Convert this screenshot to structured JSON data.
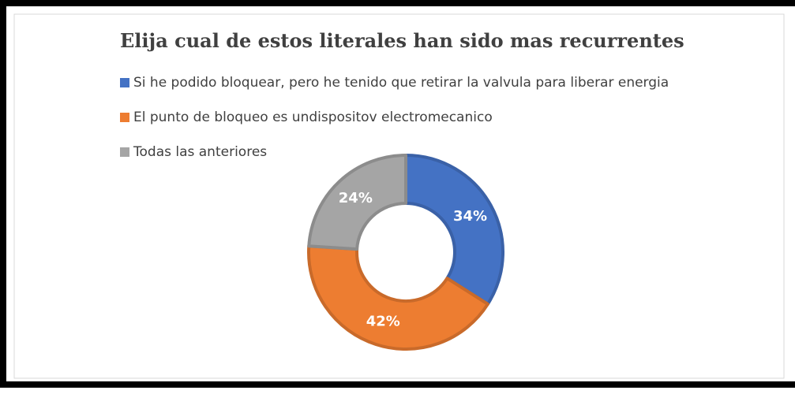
{
  "chart_data": {
    "type": "donut",
    "title": "Elija cual de estos literales han sido mas recurrentes",
    "categories": [
      "Si he podido bloquear, pero he tenido que retirar la valvula para liberar energia",
      "El punto de bloqueo es undispositov electromecanico",
      "Todas las anteriores"
    ],
    "values": [
      34,
      42,
      24
    ],
    "value_labels": [
      "34%",
      "42%",
      "24%"
    ],
    "colors": [
      "#4472c4",
      "#ed7d31",
      "#a5a5a5"
    ],
    "legend": "top"
  }
}
